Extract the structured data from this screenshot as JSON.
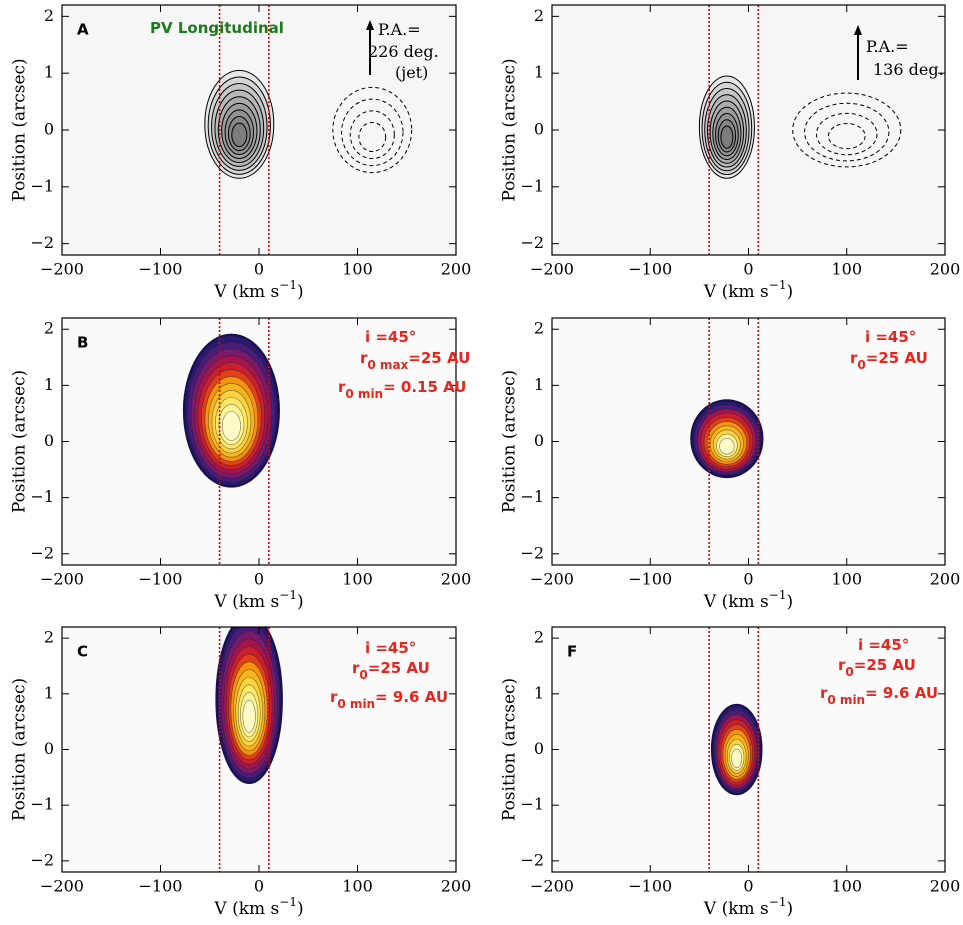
{
  "chart_data": [
    {
      "type": "contour",
      "style": "observed",
      "label": "A",
      "xlabel": {
        "text": "V (km s",
        "sup": "−1",
        "after": ")"
      },
      "ylabel": "Position (arcsec)",
      "xlim": [
        -200,
        200
      ],
      "ylim": [
        -2.2,
        2.2
      ],
      "xticks": [
        {
          "value": -200,
          "label": "−200"
        },
        {
          "value": -100,
          "label": "−100"
        },
        0,
        100,
        200
      ],
      "yticks": [
        {
          "value": -2,
          "label": "−2"
        },
        {
          "value": -1,
          "label": "−1"
        },
        0,
        1,
        2
      ],
      "vlines": [
        -40,
        10
      ],
      "vline_color": "#e00000",
      "emission": [
        {
          "x": -20,
          "y": 0.1,
          "rx": 35,
          "ry": 0.95,
          "levels": 9,
          "dashed": false
        },
        {
          "x": 115,
          "y": 0,
          "rx": 40,
          "ry": 0.75,
          "levels": 4,
          "dashed": true
        }
      ],
      "annotations": [
        {
          "text": "PV Longitudinal",
          "color": "#1e7a1e"
        },
        {
          "text": "P.A.=",
          "color": "#000"
        },
        {
          "text": "226 deg.",
          "color": "#000"
        },
        {
          "text": "(jet)",
          "color": "#000"
        }
      ]
    },
    {
      "type": "contour",
      "style": "observed",
      "xlabel": {
        "text": "V (km s",
        "sup": "−1",
        "after": ")"
      },
      "ylabel": "Position (arcsec)",
      "xlim": [
        -200,
        200
      ],
      "ylim": [
        -2.2,
        2.2
      ],
      "xticks": [
        {
          "value": -200,
          "label": "−200"
        },
        {
          "value": -100,
          "label": "−100"
        },
        0,
        100,
        200
      ],
      "yticks": [
        {
          "value": -2,
          "label": "−2"
        },
        {
          "value": -1,
          "label": "−1"
        },
        0,
        1,
        2
      ],
      "vlines": [
        -40,
        10
      ],
      "vline_color": "#e00000",
      "emission": [
        {
          "x": -22,
          "y": 0.05,
          "rx": 28,
          "ry": 0.9,
          "levels": 9,
          "dashed": false
        },
        {
          "x": 100,
          "y": 0,
          "rx": 55,
          "ry": 0.65,
          "levels": 4,
          "dashed": true
        }
      ],
      "annotations": [
        {
          "text": "P.A.=",
          "color": "#000"
        },
        {
          "text": "136 deg.",
          "color": "#000"
        }
      ]
    },
    {
      "type": "contour",
      "style": "model",
      "label": "B",
      "xlabel": {
        "text": "V (km s",
        "sup": "−1",
        "after": ")"
      },
      "ylabel": "Position (arcsec)",
      "xlim": [
        -200,
        200
      ],
      "ylim": [
        -2.2,
        2.2
      ],
      "xticks": [
        {
          "value": -200,
          "label": "−200"
        },
        {
          "value": -100,
          "label": "−100"
        },
        0,
        100,
        200
      ],
      "yticks": [
        {
          "value": -2,
          "label": "−2"
        },
        {
          "value": -1,
          "label": "−1"
        },
        0,
        1,
        2
      ],
      "vlines": [
        -40,
        10
      ],
      "vline_color": "#e00000",
      "emission": [
        {
          "x": -28,
          "y": 0.55,
          "rx": 48,
          "ry": 1.35,
          "levels": 12,
          "dashed": false
        }
      ],
      "annotations": [
        {
          "text": "i =45°",
          "color": "#e8241c"
        },
        {
          "text": "r",
          "sub": "0 max",
          "after": "=25 AU",
          "color": "#e8241c"
        },
        {
          "text": "r",
          "sub": "0 min",
          "after": "= 0.15 AU",
          "color": "#e8241c"
        }
      ]
    },
    {
      "type": "contour",
      "style": "model",
      "xlabel": {
        "text": "V (km s",
        "sup": "−1",
        "after": ")"
      },
      "ylabel": "Position (arcsec)",
      "xlim": [
        -200,
        200
      ],
      "ylim": [
        -2.2,
        2.2
      ],
      "xticks": [
        {
          "value": -200,
          "label": "−200"
        },
        {
          "value": -100,
          "label": "−100"
        },
        0,
        100,
        200
      ],
      "yticks": [
        {
          "value": -2,
          "label": "−2"
        },
        {
          "value": -1,
          "label": "−1"
        },
        0,
        1,
        2
      ],
      "vlines": [
        -40,
        10
      ],
      "vline_color": "#e00000",
      "emission": [
        {
          "x": -22,
          "y": 0.05,
          "rx": 36,
          "ry": 0.68,
          "levels": 10,
          "dashed": false
        }
      ],
      "annotations": [
        {
          "text": "i =45°",
          "color": "#e8241c"
        },
        {
          "text": "r",
          "sub": "0",
          "after": "=25 AU",
          "color": "#e8241c"
        }
      ]
    },
    {
      "type": "contour",
      "style": "model",
      "label": "C",
      "xlabel": {
        "text": "V (km s",
        "sup": "−1",
        "after": ")"
      },
      "ylabel": "Position (arcsec)",
      "xlim": [
        -200,
        200
      ],
      "ylim": [
        -2.2,
        2.2
      ],
      "xticks": [
        {
          "value": -200,
          "label": "−200"
        },
        {
          "value": -100,
          "label": "−100"
        },
        0,
        100,
        200
      ],
      "yticks": [
        {
          "value": -2,
          "label": "−2"
        },
        {
          "value": -1,
          "label": "−1"
        },
        0,
        1,
        2
      ],
      "vlines": [
        -40,
        10
      ],
      "vline_color": "#e00000",
      "emission": [
        {
          "x": -10,
          "y": 0.9,
          "rx": 33,
          "ry": 1.5,
          "levels": 12,
          "dashed": false
        }
      ],
      "annotations": [
        {
          "text": "i =45°",
          "color": "#e8241c"
        },
        {
          "text": "r",
          "sub": "0",
          "after": "=25 AU",
          "color": "#e8241c"
        },
        {
          "text": "r",
          "sub": "0 min",
          "after": "= 9.6 AU",
          "color": "#e8241c"
        }
      ]
    },
    {
      "type": "contour",
      "style": "model",
      "label": "F",
      "xlabel": {
        "text": "V (km s",
        "sup": "−1",
        "after": ")"
      },
      "ylabel": "Position (arcsec)",
      "xlim": [
        -200,
        200
      ],
      "ylim": [
        -2.2,
        2.2
      ],
      "xticks": [
        {
          "value": -200,
          "label": "−200"
        },
        {
          "value": -100,
          "label": "−100"
        },
        0,
        100,
        200
      ],
      "yticks": [
        {
          "value": -2,
          "label": "−2"
        },
        {
          "value": -1,
          "label": "−1"
        },
        0,
        1,
        2
      ],
      "vlines": [
        -40,
        10
      ],
      "vline_color": "#e00000",
      "emission": [
        {
          "x": -12,
          "y": 0,
          "rx": 25,
          "ry": 0.8,
          "levels": 10,
          "dashed": false
        }
      ],
      "annotations": [
        {
          "text": "i =45°",
          "color": "#e8241c"
        },
        {
          "text": "r",
          "sub": "0",
          "after": "=25 AU",
          "color": "#e8241c"
        },
        {
          "text": "r",
          "sub": "0 min",
          "after": "= 9.6 AU",
          "color": "#e8241c"
        }
      ]
    }
  ]
}
